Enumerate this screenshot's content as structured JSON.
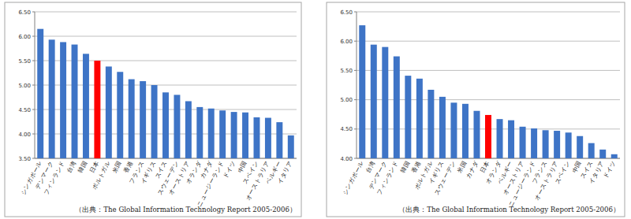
{
  "chart_data": [
    {
      "type": "bar",
      "categories": [
        "シンガポール",
        "デンマーク",
        "フィンランド",
        "台湾",
        "韓国",
        "日本",
        "ポルトガル",
        "米国",
        "香港",
        "フランス",
        "イギリス",
        "スイス",
        "スウェーデン",
        "オーストリア",
        "オランダ",
        "カナダ",
        "ニュージーランド",
        "ドイツ",
        "中国",
        "スペイン",
        "オーストラリア",
        "ベルギー",
        "イタリア"
      ],
      "values": [
        6.15,
        5.93,
        5.88,
        5.83,
        5.64,
        5.5,
        5.38,
        5.27,
        5.12,
        5.08,
        5.0,
        4.85,
        4.8,
        4.67,
        4.55,
        4.52,
        4.48,
        4.45,
        4.44,
        4.34,
        4.33,
        4.24,
        3.97
      ],
      "colors": [
        "#3e74c6",
        "#3e74c6",
        "#3e74c6",
        "#3e74c6",
        "#3e74c6",
        "#ff0000",
        "#3e74c6",
        "#3e74c6",
        "#3e74c6",
        "#3e74c6",
        "#3e74c6",
        "#3e74c6",
        "#3e74c6",
        "#3e74c6",
        "#3e74c6",
        "#3e74c6",
        "#3e74c6",
        "#3e74c6",
        "#3e74c6",
        "#3e74c6",
        "#3e74c6",
        "#3e74c6",
        "#3e74c6"
      ],
      "ylim": [
        3.5,
        6.5
      ],
      "yticks": [
        {
          "value": 3.5,
          "label": "3.50"
        },
        {
          "value": 4,
          "label": "4.00"
        },
        {
          "value": 4.5,
          "label": "4.50"
        },
        {
          "value": 5,
          "label": "5.00"
        },
        {
          "value": 5.5,
          "label": "5.50"
        },
        {
          "value": 6,
          "label": "6.00"
        },
        {
          "value": 6.5,
          "label": "6.50"
        }
      ],
      "grid": true,
      "annotation": "（出典：The Global Information Technology Report 2005-2006）"
    },
    {
      "type": "bar",
      "categories": [
        "シンガポール",
        "台湾",
        "デンマーク",
        "フィンランド",
        "韓国",
        "香港",
        "ポルトガル",
        "イギリス",
        "スウェーデン",
        "米国",
        "カナダ",
        "日本",
        "オランダ",
        "ベルギー",
        "オーストリア",
        "ニュージーランド",
        "フランス",
        "オーストラリア",
        "スペイン",
        "中国",
        "スイス",
        "イタリア",
        "ドイツ"
      ],
      "values": [
        6.27,
        5.94,
        5.9,
        5.74,
        5.41,
        5.36,
        5.17,
        5.05,
        4.95,
        4.93,
        4.81,
        4.74,
        4.67,
        4.65,
        4.54,
        4.51,
        4.48,
        4.47,
        4.44,
        4.38,
        4.26,
        4.15,
        4.07
      ],
      "colors": [
        "#3e74c6",
        "#3e74c6",
        "#3e74c6",
        "#3e74c6",
        "#3e74c6",
        "#3e74c6",
        "#3e74c6",
        "#3e74c6",
        "#3e74c6",
        "#3e74c6",
        "#3e74c6",
        "#ff0000",
        "#3e74c6",
        "#3e74c6",
        "#3e74c6",
        "#3e74c6",
        "#3e74c6",
        "#3e74c6",
        "#3e74c6",
        "#3e74c6",
        "#3e74c6",
        "#3e74c6",
        "#3e74c6"
      ],
      "ylim": [
        4,
        6.5
      ],
      "yticks": [
        {
          "value": 4,
          "label": "4.00"
        },
        {
          "value": 4.5,
          "label": "4.50"
        },
        {
          "value": 5,
          "label": "5.00"
        },
        {
          "value": 5.5,
          "label": "5.50"
        },
        {
          "value": 6,
          "label": "6.00"
        },
        {
          "value": 6.5,
          "label": "6.50"
        }
      ],
      "grid": true,
      "annotation": "（出典：The Global Information Technology Report 2005-2006）"
    }
  ]
}
